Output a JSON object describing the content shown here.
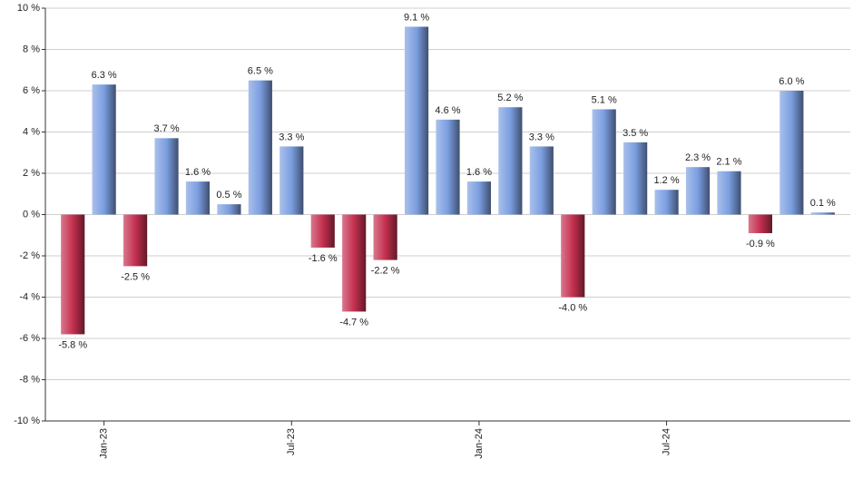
{
  "chart_data": {
    "type": "bar",
    "categories": [
      null,
      "Jan-23",
      null,
      null,
      null,
      null,
      null,
      "Jul-23",
      null,
      null,
      null,
      null,
      null,
      "Jan-24",
      null,
      null,
      null,
      null,
      null,
      "Jul-24",
      null,
      null,
      null,
      null,
      null
    ],
    "values": [
      -5.8,
      6.3,
      -2.5,
      3.7,
      1.6,
      0.5,
      6.5,
      3.3,
      -1.6,
      -4.7,
      -2.2,
      9.1,
      4.6,
      1.6,
      5.2,
      3.3,
      -4.0,
      5.1,
      3.5,
      1.2,
      2.3,
      2.1,
      -0.9,
      6.0,
      0.1
    ],
    "value_labels": [
      "-5.8 %",
      "6.3 %",
      "-2.5 %",
      "3.7 %",
      "1.6 %",
      "0.5 %",
      "6.5 %",
      "3.3 %",
      "-1.6 %",
      "-4.7 %",
      "-2.2 %",
      "9.1 %",
      "4.6 %",
      "1.6 %",
      "5.2 %",
      "3.3 %",
      "-4.0 %",
      "5.1 %",
      "3.5 %",
      "1.2 %",
      "2.3 %",
      "2.1 %",
      "-0.9 %",
      "6.0 %",
      "0.1 %"
    ],
    "colors": {
      "positive": "#7b9ee0",
      "negative": "#c4304f"
    },
    "ylim": [
      -10,
      10
    ],
    "yticks": [
      {
        "value": -10,
        "label": "-10 %"
      },
      {
        "value": -8,
        "label": "-8 %"
      },
      {
        "value": -6,
        "label": "-6 %"
      },
      {
        "value": -4,
        "label": "-4 %"
      },
      {
        "value": -2,
        "label": "-2 %"
      },
      {
        "value": 0,
        "label": "0 %"
      },
      {
        "value": 2,
        "label": "2 %"
      },
      {
        "value": 4,
        "label": "4 %"
      },
      {
        "value": 6,
        "label": "6 %"
      },
      {
        "value": 8,
        "label": "8 %"
      },
      {
        "value": 10,
        "label": "10 %"
      }
    ],
    "grid": true
  }
}
